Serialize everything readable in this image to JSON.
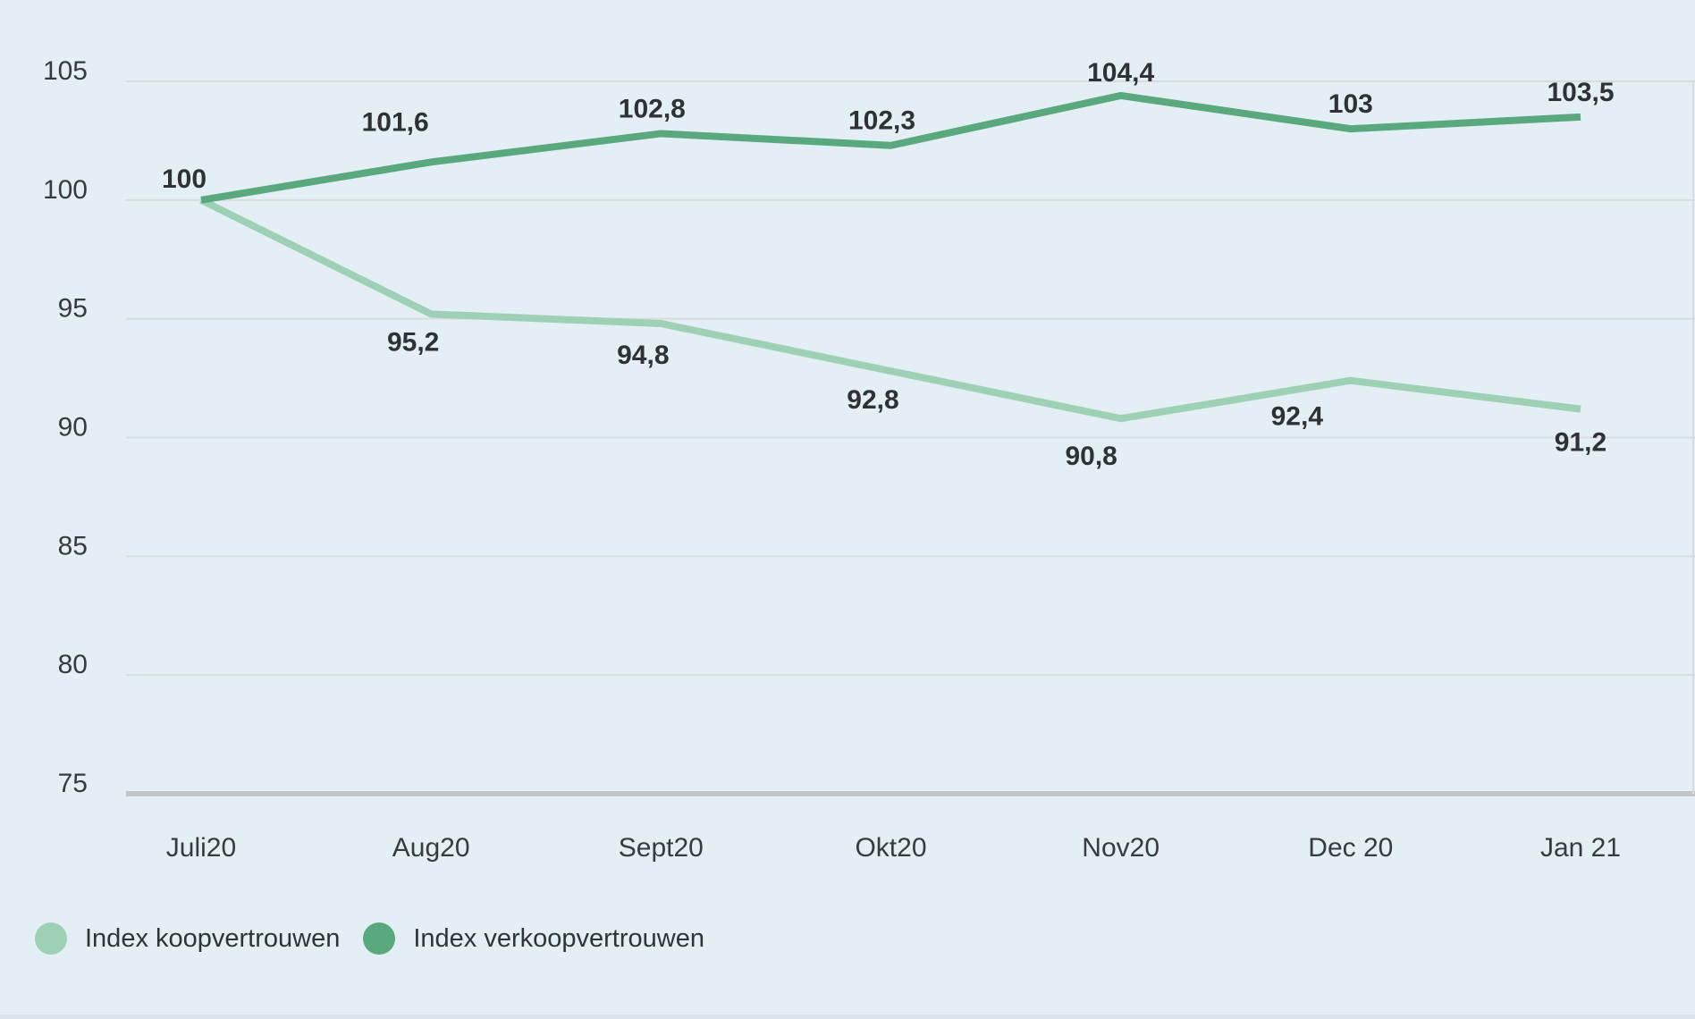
{
  "chart_data": {
    "type": "line",
    "title": "",
    "x_labels": [
      "Juli20",
      "Aug20",
      "Sept20",
      "Okt20",
      "Nov20",
      "Dec 20",
      "Jan 21"
    ],
    "y_ticks": [
      "105",
      "100",
      "95",
      "90",
      "85",
      "80",
      "75"
    ],
    "ylim": [
      75,
      105
    ],
    "grid": true,
    "legend_position": "bottom-left",
    "series": [
      {
        "name": "Index koopvertrouwen",
        "color": "#9dd0b4",
        "values": [
          100,
          95.2,
          94.8,
          92.8,
          90.8,
          92.4,
          91.2
        ],
        "point_labels": [
          "",
          "95,2",
          "94,8",
          "92,8",
          "90,8",
          "92,4",
          "91,2"
        ]
      },
      {
        "name": "Index verkoopvertrouwen",
        "color": "#5aa87e",
        "values": [
          100,
          101.6,
          102.8,
          102.3,
          104.4,
          103,
          103.5
        ],
        "point_labels": [
          "100",
          "101,6",
          "102,8",
          "102,3",
          "104,4",
          "103",
          "103,5"
        ]
      }
    ]
  },
  "colors": {
    "background": "#e4eff5",
    "gridline": "#d9dcde",
    "axis_line": "#c2c6c8",
    "tick_text": "#373b3d",
    "value_text": "#2e3234",
    "legend_text": "#2f3437"
  }
}
